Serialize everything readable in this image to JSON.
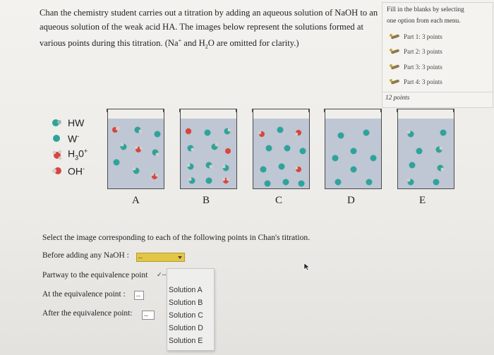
{
  "question": {
    "line1_pre": "Chan the chemistry student carries out a titration by adding an aqueous solution of NaOH to an",
    "line2": "aqueous solution of the weak acid HA. The images below represent the solutions formed at",
    "line3_a": "various points during this titration. (Na",
    "line3_sup": "+",
    "line3_b": " and H",
    "line3_sub": "2",
    "line3_c": "O are omitted for clarity.)"
  },
  "side_panel": {
    "note_line1": "Fill in the blanks by selecting",
    "note_line2": "one option from each menu.",
    "parts": [
      {
        "label": "Part 1: 3 points"
      },
      {
        "label": "Part 2: 3 points"
      },
      {
        "label": "Part 3: 3 points"
      },
      {
        "label": "Part 4: 3 points"
      }
    ],
    "total": "12 points"
  },
  "legend": [
    {
      "label": "HW",
      "icon": "hw-molecule-icon"
    },
    {
      "label": "W",
      "sup": "-",
      "icon": "w-ion-icon"
    },
    {
      "label": "H",
      "sub": "3",
      "label_b": "0",
      "sup": "+",
      "icon": "h3o-ion-icon"
    },
    {
      "label": "OH",
      "sup": "-",
      "icon": "oh-ion-icon"
    }
  ],
  "beakers": [
    {
      "label": "A"
    },
    {
      "label": "B"
    },
    {
      "label": "C"
    },
    {
      "label": "D"
    },
    {
      "label": "E"
    }
  ],
  "colors": {
    "teal": "#2fa39a",
    "red": "#d8463e",
    "beaker_fill": "#bfc6d4"
  },
  "instructions": "Select the image corresponding to each of the following points in Chan's titration.",
  "questions": [
    {
      "label": "Before adding any NaOH :",
      "value": "--"
    },
    {
      "label": "Partway to the equivalence point",
      "value": "--"
    },
    {
      "label": "At the equivalence point :",
      "value": "--"
    },
    {
      "label": "After the equivalence point:",
      "value": "--"
    }
  ],
  "open_select": {
    "check": "✓",
    "value": "--"
  },
  "menu_options": [
    "Solution A",
    "Solution B",
    "Solution C",
    "Solution D",
    "Solution E"
  ]
}
